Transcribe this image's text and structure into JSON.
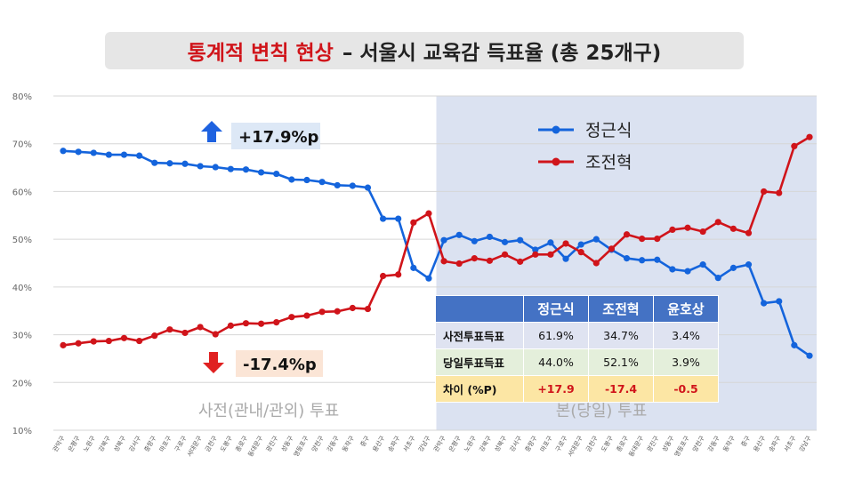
{
  "title": {
    "highlight": "통계적 변칙 현상",
    "rest": "– 서울시 교육감 득표율 (총 25개구)"
  },
  "sections": {
    "early": "사전(관내/관외) 투표",
    "main": "본(당일) 투표"
  },
  "annotations": {
    "up_value": "+17.9%p",
    "down_value": "-17.4%p"
  },
  "colors": {
    "blue": "#1464dc",
    "red": "#d0141a",
    "panel": "#dbe2f1",
    "title_bg": "#e6e6e6"
  },
  "table": {
    "headers": [
      "정근식",
      "조전혁",
      "윤호상"
    ],
    "rows": [
      {
        "label": "사전투표득표",
        "values": [
          "61.9%",
          "34.7%",
          "3.4%"
        ]
      },
      {
        "label": "당일투표득표",
        "values": [
          "44.0%",
          "52.1%",
          "3.9%"
        ]
      },
      {
        "label": "차이 (%P)",
        "values": [
          "+17.9",
          "-17.4",
          "-0.5"
        ]
      }
    ]
  },
  "chart_data": {
    "type": "line",
    "ylim": [
      10,
      80
    ],
    "yticks": [
      "10%",
      "20%",
      "30%",
      "40%",
      "50%",
      "60%",
      "70%",
      "80%"
    ],
    "categories": [
      "관악구",
      "은평구",
      "노원구",
      "강북구",
      "성북구",
      "강서구",
      "중랑구",
      "마포구",
      "구로구",
      "서대문구",
      "금천구",
      "도봉구",
      "종로구",
      "동대문구",
      "광진구",
      "성동구",
      "영등포구",
      "양천구",
      "강동구",
      "동작구",
      "중구",
      "용산구",
      "송파구",
      "서초구",
      "강남구",
      "관악구",
      "은평구",
      "노원구",
      "강북구",
      "성북구",
      "강서구",
      "중랑구",
      "마포구",
      "구로구",
      "서대문구",
      "금천구",
      "도봉구",
      "종로구",
      "동대문구",
      "광진구",
      "성동구",
      "영등포구",
      "양천구",
      "강동구",
      "동작구",
      "중구",
      "용산구",
      "송파구",
      "서초구",
      "강남구"
    ],
    "series": [
      {
        "name": "정근식",
        "values": [
          68.5,
          68.3,
          68.1,
          67.7,
          67.7,
          67.5,
          66.0,
          65.9,
          65.8,
          65.3,
          65.1,
          64.7,
          64.6,
          64.0,
          63.7,
          62.5,
          62.4,
          62.0,
          61.3,
          61.2,
          60.8,
          54.3,
          54.3,
          44.0,
          41.8,
          49.8,
          50.9,
          49.6,
          50.5,
          49.4,
          49.8,
          47.8,
          49.3,
          45.9,
          48.9,
          50.0,
          47.8,
          46.0,
          45.6,
          45.7,
          43.7,
          43.3,
          44.7,
          41.9,
          44.0,
          44.7,
          36.6,
          37.0,
          27.8,
          25.6
        ]
      },
      {
        "name": "조전혁",
        "values": [
          27.8,
          28.2,
          28.6,
          28.7,
          29.3,
          28.7,
          29.8,
          31.1,
          30.4,
          31.6,
          30.1,
          31.9,
          32.4,
          32.3,
          32.6,
          33.7,
          34.0,
          34.8,
          34.9,
          35.6,
          35.4,
          42.3,
          42.6,
          53.5,
          55.4,
          45.4,
          44.9,
          46.0,
          45.5,
          46.8,
          45.3,
          46.8,
          46.8,
          49.1,
          47.3,
          45.0,
          48.0,
          51.0,
          50.1,
          50.1,
          52.0,
          52.4,
          51.6,
          53.6,
          52.2,
          51.3,
          60.0,
          59.7,
          69.5,
          71.4
        ]
      }
    ]
  }
}
